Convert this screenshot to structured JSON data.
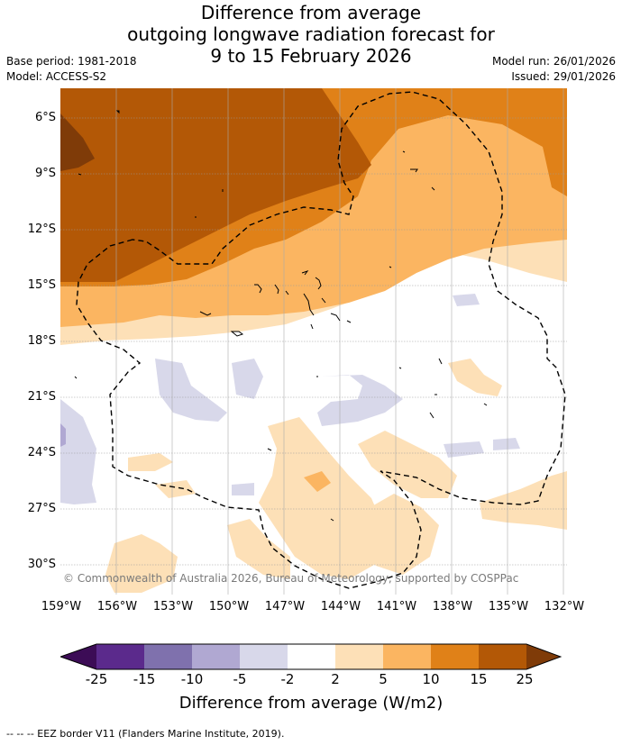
{
  "title": {
    "line1": "Difference from average",
    "line2": "outgoing longwave radiation forecast for",
    "line3": "9 to 15 February 2026"
  },
  "meta": {
    "base_period": "Base period: 1981-2018",
    "model": "Model: ACCESS-S2",
    "model_run": "Model run: 26/01/2026",
    "issued": "Issued: 29/01/2026"
  },
  "map": {
    "lat_labels": [
      "6°S",
      "9°S",
      "12°S",
      "15°S",
      "18°S",
      "21°S",
      "24°S",
      "27°S",
      "30°S"
    ],
    "lon_labels": [
      "159°W",
      "156°W",
      "153°W",
      "150°W",
      "147°W",
      "144°W",
      "141°W",
      "138°W",
      "135°W",
      "132°W"
    ],
    "copyright": "© Commonwealth of Australia 2026, Bureau of Meteorology, supported by COSPPac",
    "palette": {
      "neg25": "#3c0c56",
      "neg15": "#5b2a8c",
      "neg10": "#7f71ad",
      "neg5": "#b0a8d2",
      "neg2": "#d8d8ea",
      "zero": "#ffffff",
      "pos2": "#fde0b7",
      "pos5": "#fbb561",
      "pos10": "#e08118",
      "pos15": "#b35806",
      "pos25": "#7f3b08"
    }
  },
  "colorbar": {
    "ticks": [
      "-25",
      "-15",
      "-10",
      "-5",
      "-2",
      "2",
      "5",
      "10",
      "15",
      "25"
    ],
    "label": "Difference from average (W/m2)"
  },
  "footer": {
    "legend": "-- -- -- EEZ border V11 (Flanders Marine Institute, 2019)."
  }
}
